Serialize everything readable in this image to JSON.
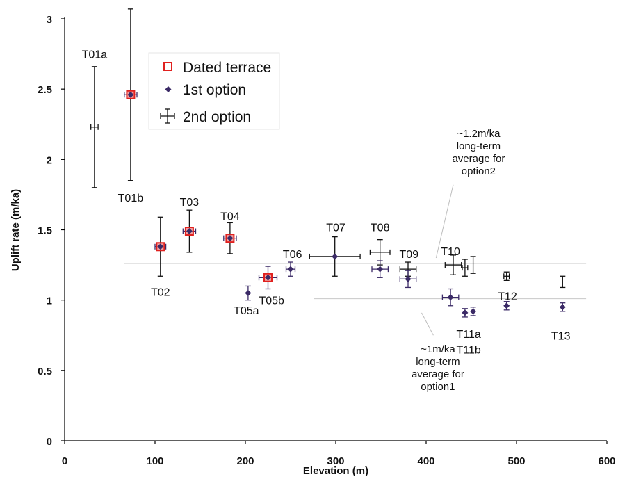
{
  "chart_data": {
    "type": "scatter",
    "xlabel": "Elevation (m)",
    "ylabel": "Uplift rate (m/ka)",
    "xlim": [
      0,
      600
    ],
    "ylim": [
      0,
      3
    ],
    "xticks": [
      "0",
      "100",
      "200",
      "300",
      "400",
      "500",
      "600"
    ],
    "yticks": [
      "0",
      "0.5",
      "1",
      "1.5",
      "2",
      "2.5",
      "3"
    ],
    "grid": false,
    "legend_position": "top-left",
    "legend": [
      {
        "key": "dated",
        "label": "Dated terrace"
      },
      {
        "key": "first",
        "label": "1st option"
      },
      {
        "key": "second",
        "label": "2nd option"
      }
    ],
    "series": [
      {
        "name": "Dated terrace",
        "marker": "square",
        "color": "#e0211f",
        "points": [
          {
            "x": 73,
            "y": 2.46
          },
          {
            "x": 106,
            "y": 1.38
          },
          {
            "x": 138,
            "y": 1.49
          },
          {
            "x": 183,
            "y": 1.44
          },
          {
            "x": 225,
            "y": 1.16
          }
        ]
      },
      {
        "name": "1st option",
        "marker": "diamond",
        "color": "#3b2a66",
        "points": [
          {
            "x": 73,
            "y": 2.46,
            "xerr": 7,
            "yerr": 0
          },
          {
            "x": 106,
            "y": 1.38,
            "xerr": 6,
            "yerr": 0
          },
          {
            "x": 138,
            "y": 1.49,
            "xerr": 7,
            "yerr": 0
          },
          {
            "x": 183,
            "y": 1.44,
            "xerr": 7,
            "yerr": 0
          },
          {
            "x": 203,
            "y": 1.05,
            "xerr": 0,
            "yerr": 0.05
          },
          {
            "x": 225,
            "y": 1.16,
            "xerr": 10,
            "yerr": 0.08
          },
          {
            "x": 250,
            "y": 1.22,
            "xerr": 5,
            "yerr": 0.05
          },
          {
            "x": 299,
            "y": 1.31,
            "xerr": 0,
            "yerr": 0
          },
          {
            "x": 349,
            "y": 1.22,
            "xerr": 9,
            "yerr": 0.06
          },
          {
            "x": 380,
            "y": 1.15,
            "xerr": 9,
            "yerr": 0.06
          },
          {
            "x": 427,
            "y": 1.02,
            "xerr": 9,
            "yerr": 0.06
          },
          {
            "x": 443,
            "y": 0.91,
            "xerr": 0,
            "yerr": 0.03
          },
          {
            "x": 452,
            "y": 0.92,
            "xerr": 0,
            "yerr": 0.03
          },
          {
            "x": 489,
            "y": 0.96,
            "xerr": 0,
            "yerr": 0.03
          },
          {
            "x": 551,
            "y": 0.95,
            "xerr": 0,
            "yerr": 0.03
          }
        ]
      },
      {
        "name": "2nd option",
        "marker": "errorbar",
        "color": "#111111",
        "points": [
          {
            "x": 33,
            "y": 2.23,
            "xerr": 4,
            "yerr": 0.43
          },
          {
            "x": 73,
            "y": 2.46,
            "xerr": 0,
            "yerr": 0.61
          },
          {
            "x": 106,
            "y": 1.38,
            "xerr": 0,
            "yerr": 0.21
          },
          {
            "x": 138,
            "y": 1.49,
            "xerr": 0,
            "yerr": 0.15
          },
          {
            "x": 183,
            "y": 1.44,
            "xerr": 0,
            "yerr": 0.11
          },
          {
            "x": 225,
            "y": 1.16,
            "xerr": 0,
            "yerr": 0
          },
          {
            "x": 299,
            "y": 1.31,
            "xerr": 28,
            "yerr": 0.14
          },
          {
            "x": 349,
            "y": 1.34,
            "xerr": 11,
            "yerr": 0.09
          },
          {
            "x": 380,
            "y": 1.22,
            "xerr": 9,
            "yerr": 0.05
          },
          {
            "x": 430,
            "y": 1.25,
            "xerr": 9,
            "yerr": 0.07
          },
          {
            "x": 443,
            "y": 1.23,
            "xerr": 3,
            "yerr": 0.06
          },
          {
            "x": 452,
            "y": 1.25,
            "xerr": 0,
            "yerr": 0.06
          },
          {
            "x": 489,
            "y": 1.17,
            "xerr": 3,
            "yerr": 0.03
          },
          {
            "x": 551,
            "y": 1.13,
            "xerr": 0,
            "yerr": 0.04
          }
        ]
      }
    ],
    "point_labels": [
      {
        "text": "T01a",
        "x": 33,
        "y": 2.75
      },
      {
        "text": "T01b",
        "x": 73,
        "y": 1.73
      },
      {
        "text": "T02",
        "x": 106,
        "y": 1.06
      },
      {
        "text": "T03",
        "x": 138,
        "y": 1.7
      },
      {
        "text": "T04",
        "x": 183,
        "y": 1.6
      },
      {
        "text": "T05a",
        "x": 201,
        "y": 0.93
      },
      {
        "text": "T05b",
        "x": 229,
        "y": 1.0
      },
      {
        "text": "T06",
        "x": 252,
        "y": 1.33
      },
      {
        "text": "T07",
        "x": 300,
        "y": 1.52
      },
      {
        "text": "T08",
        "x": 349,
        "y": 1.52
      },
      {
        "text": "T09",
        "x": 381,
        "y": 1.33
      },
      {
        "text": "T10",
        "x": 427,
        "y": 1.35
      },
      {
        "text": "T11a",
        "x": 447,
        "y": 0.76
      },
      {
        "text": "T11b",
        "x": 447,
        "y": 0.65
      },
      {
        "text": "T12",
        "x": 490,
        "y": 1.03
      },
      {
        "text": "T13",
        "x": 549,
        "y": 0.75
      }
    ],
    "reference_lines": [
      {
        "y": 1.26,
        "x_from": 66,
        "x_to": 577
      },
      {
        "y": 1.01,
        "x_from": 276,
        "x_to": 577
      }
    ],
    "annotations": [
      {
        "lines": [
          "~1.2m/ka",
          "long-term",
          "average for",
          "option2"
        ],
        "x": 458,
        "y": 2.05,
        "leader_from": [
          411,
          1.3
        ],
        "leader_to": [
          430,
          1.82
        ]
      },
      {
        "lines": [
          "~1m/ka",
          "long-term",
          "average for",
          "option1"
        ],
        "x": 413,
        "y": 0.52,
        "leader_from": [
          408,
          0.75
        ],
        "leader_to": [
          395,
          0.91
        ]
      }
    ]
  }
}
